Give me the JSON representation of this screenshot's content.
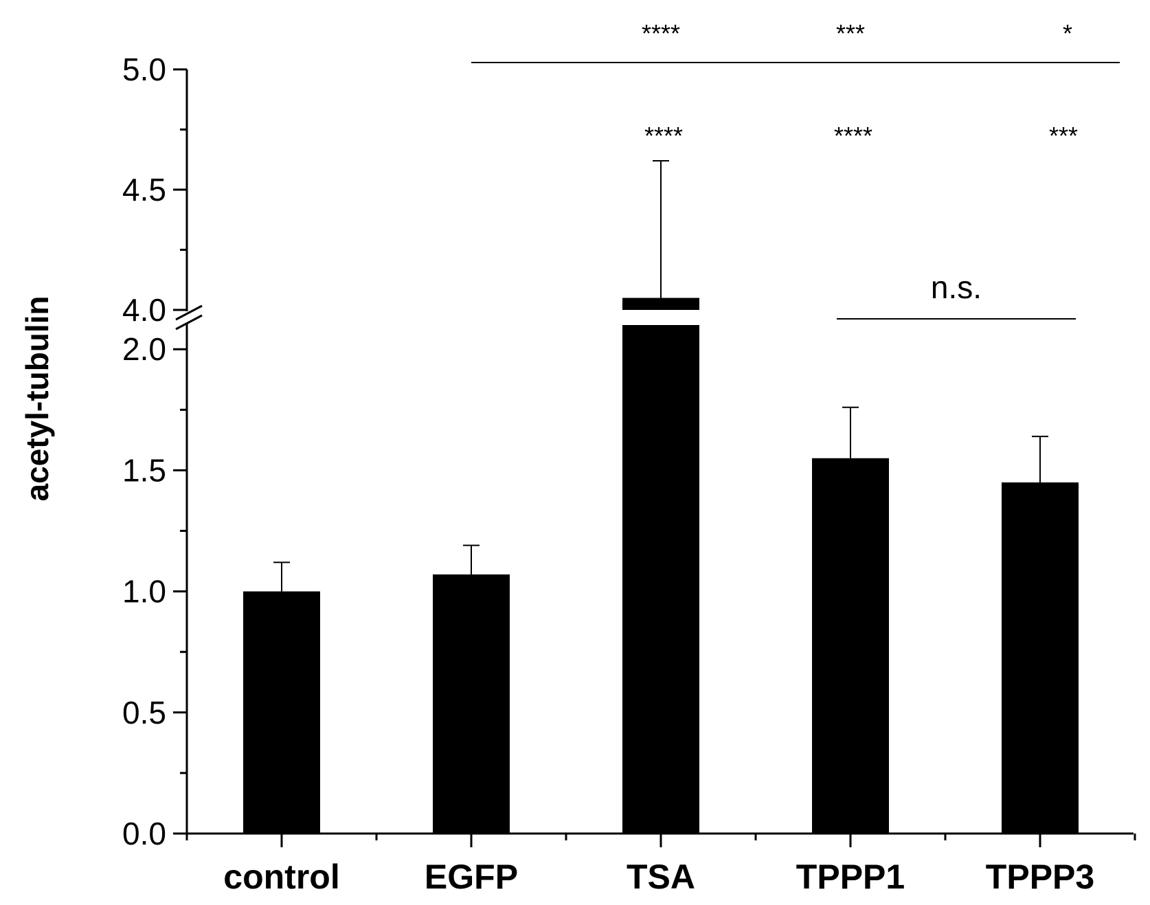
{
  "chart_data": {
    "type": "bar",
    "title": "",
    "xlabel": "",
    "ylabel": "acetyl-tubulin",
    "categories": [
      "control",
      "EGFP",
      "TSA",
      "TPPP1",
      "TPPP3"
    ],
    "values": [
      1.0,
      1.07,
      4.05,
      1.55,
      1.45
    ],
    "error_upper": [
      1.12,
      1.19,
      4.62,
      1.76,
      1.64
    ],
    "bar_color": "#000000",
    "axis_break": {
      "lower_range": [
        0,
        2.1
      ],
      "upper_range": [
        4.0,
        5.0
      ]
    },
    "yticks_lower": [
      "0.0",
      "0.5",
      "1.0",
      "1.5",
      "2.0"
    ],
    "yticks_upper": [
      "4.0",
      "4.5",
      "5.0"
    ],
    "ytick_values_lower": [
      0,
      0.5,
      1.0,
      1.5,
      2.0
    ],
    "ytick_values_upper": [
      4.0,
      4.5,
      5.0
    ],
    "annotations": {
      "vs_egfp": {
        "from": "EGFP",
        "to": "TPPP3",
        "marks": [
          {
            "category": "TSA",
            "text": "****"
          },
          {
            "category": "TPPP1",
            "text": "***"
          },
          {
            "category": "TPPP3",
            "text": "*"
          }
        ]
      },
      "vs_control": [
        {
          "category": "TSA",
          "text": "****"
        },
        {
          "category": "TPPP1",
          "text": "****"
        },
        {
          "category": "TPPP3",
          "text": "***"
        }
      ],
      "ns": {
        "from": "TPPP1",
        "to": "TPPP3",
        "text": "n.s."
      }
    }
  }
}
